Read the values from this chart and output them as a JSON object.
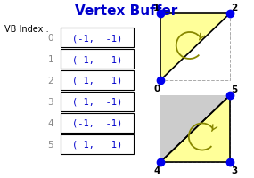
{
  "title": "Vertex Buffer",
  "title_color": "#0000cc",
  "title_fontsize": 11,
  "vb_label": "VB Index :",
  "entries": [
    {
      "index": 0,
      "text": "(-1,  -1)"
    },
    {
      "index": 1,
      "text": "(-1,   1)"
    },
    {
      "index": 2,
      "text": "( 1,   1)"
    },
    {
      "index": 3,
      "text": "( 1,  -1)"
    },
    {
      "index": 4,
      "text": "(-1,  -1)"
    },
    {
      "index": 5,
      "text": "( 1,   1)"
    }
  ],
  "text_color": "#0000cc",
  "box_color": "#000000",
  "index_color": "#888888",
  "fill_color_yellow": "#ffff99",
  "fill_color_gray": "#cccccc",
  "dot_color": "#0000ee",
  "dot_size": 6,
  "arrow_color": "#888800",
  "background": "#ffffff"
}
